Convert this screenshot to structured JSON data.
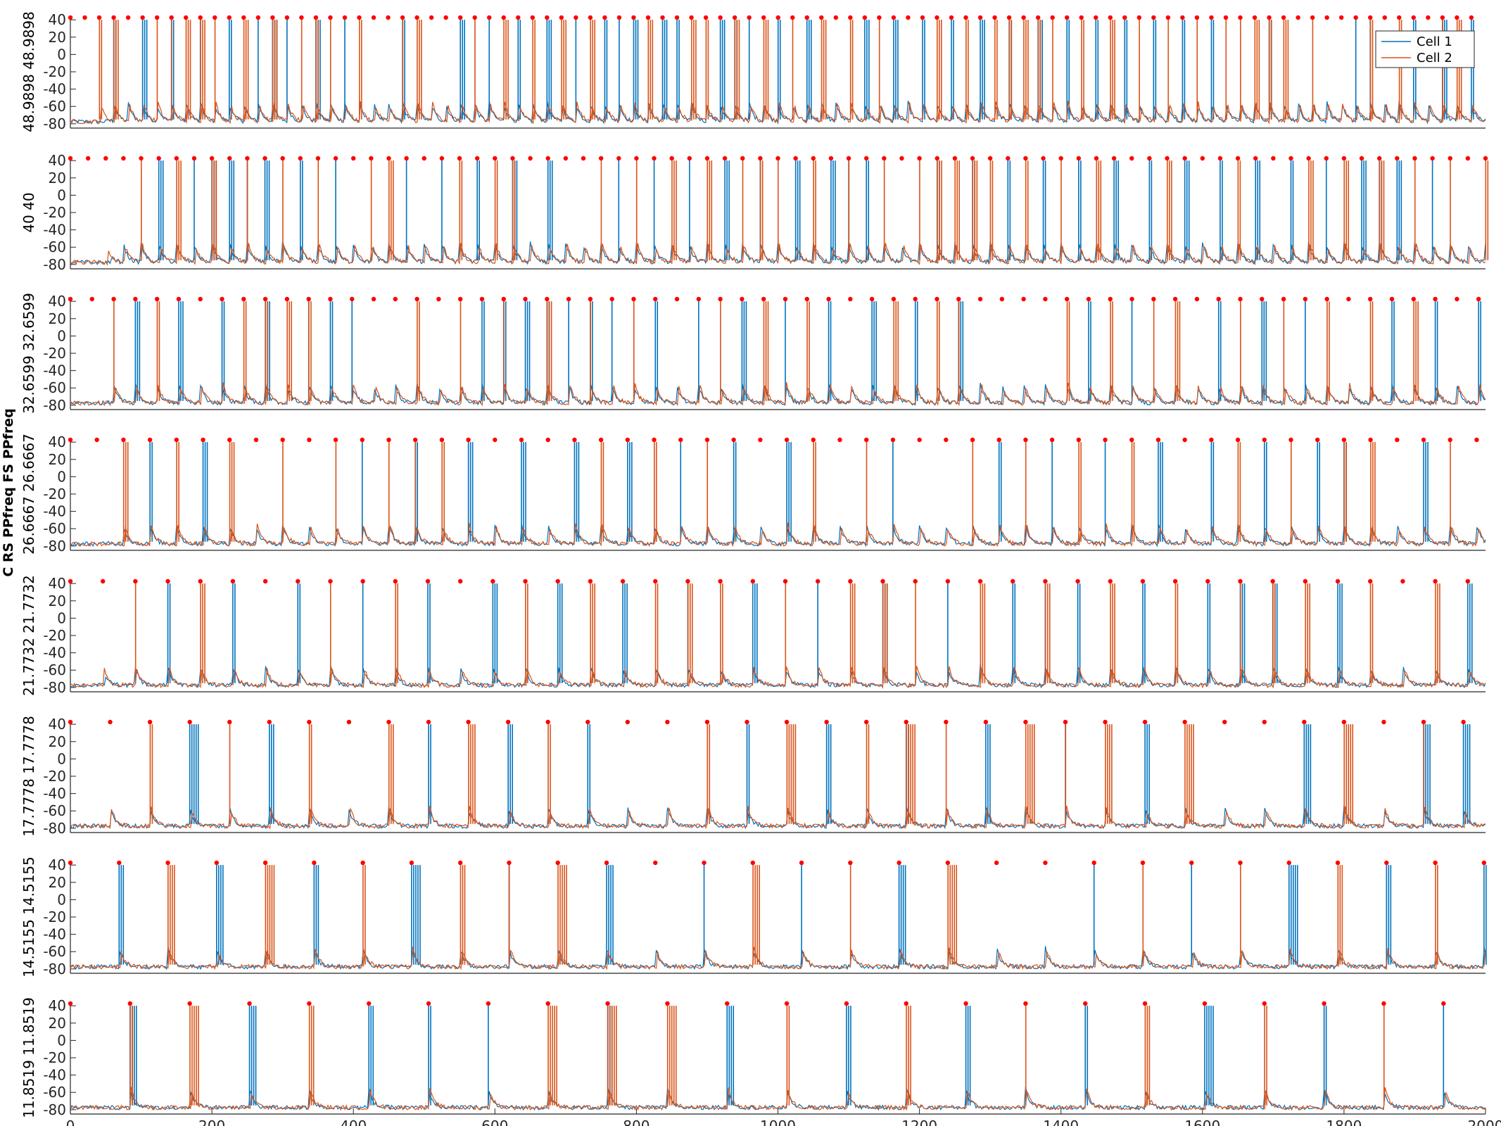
{
  "chart_data": {
    "type": "line",
    "global_ylabel": "C RS PPfreq FS PPfreq",
    "legend": {
      "position": "top-right",
      "entries": [
        "Cell 1",
        "Cell 2"
      ]
    },
    "xlim": [
      0,
      2000
    ],
    "xticks": [
      0,
      200,
      400,
      600,
      800,
      1000,
      1200,
      1400,
      1600,
      1800,
      2000
    ],
    "ylim": [
      -85,
      45
    ],
    "yticks": [
      40,
      20,
      0,
      -20,
      -40,
      -60,
      -80
    ],
    "colors": {
      "cell1": "#0072BD",
      "cell2": "#D95319",
      "marker": "#FF0000"
    },
    "panels": [
      {
        "ylabel": "48.9898 48.9898",
        "freq_hz": 48.9898,
        "phase_ms": 0
      },
      {
        "ylabel": "40 40",
        "freq_hz": 40,
        "phase_ms": 0
      },
      {
        "ylabel": "32.6599 32.6599",
        "freq_hz": 32.6599,
        "phase_ms": 0
      },
      {
        "ylabel": "26.6667 26.6667",
        "freq_hz": 26.6667,
        "phase_ms": 0
      },
      {
        "ylabel": "21.7732 21.7732",
        "freq_hz": 21.7732,
        "phase_ms": 0
      },
      {
        "ylabel": "17.7778 17.7778",
        "freq_hz": 17.7778,
        "phase_ms": 0
      },
      {
        "ylabel": "14.5155 14.5155",
        "freq_hz": 14.5155,
        "phase_ms": 0
      },
      {
        "ylabel": "11.8519 11.8519",
        "freq_hz": 11.8519,
        "phase_ms": 0
      }
    ]
  }
}
